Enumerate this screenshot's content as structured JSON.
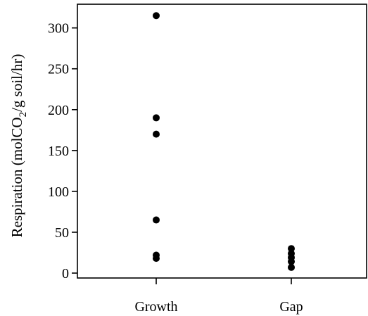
{
  "chart_data": {
    "type": "scatter",
    "ylabel": {
      "prefix": "Respiration (molCO",
      "subscript": "2",
      "suffix": "/g soil/hr)"
    },
    "xlabel": "",
    "title": "",
    "categories": [
      "Growth",
      "Gap"
    ],
    "ylim": [
      -6,
      329
    ],
    "yticks": [
      0,
      50,
      100,
      150,
      200,
      250,
      300
    ],
    "grid": false,
    "series": [
      {
        "points": [
          {
            "category": "Growth",
            "y": 315
          },
          {
            "category": "Growth",
            "y": 190
          },
          {
            "category": "Growth",
            "y": 170
          },
          {
            "category": "Growth",
            "y": 65
          },
          {
            "category": "Growth",
            "y": 22
          },
          {
            "category": "Growth",
            "y": 18
          },
          {
            "category": "Gap",
            "y": 30
          },
          {
            "category": "Gap",
            "y": 24
          },
          {
            "category": "Gap",
            "y": 19
          },
          {
            "category": "Gap",
            "y": 14
          },
          {
            "category": "Gap",
            "y": 7
          }
        ],
        "color": "#000000"
      }
    ]
  }
}
